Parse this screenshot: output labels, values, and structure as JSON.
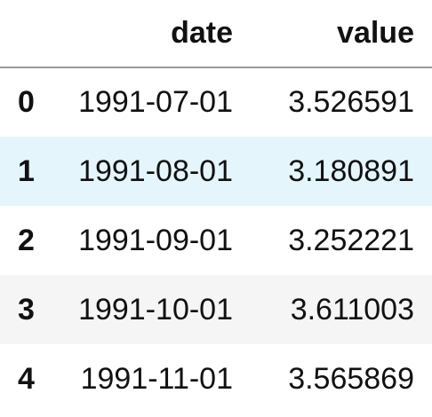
{
  "table": {
    "columns": {
      "index": "",
      "date": "date",
      "value": "value"
    },
    "rows": [
      {
        "index": "0",
        "date": "1991-07-01",
        "value": "3.526591",
        "state": "normal"
      },
      {
        "index": "1",
        "date": "1991-08-01",
        "value": "3.180891",
        "state": "hover"
      },
      {
        "index": "2",
        "date": "1991-09-01",
        "value": "3.252221",
        "state": "normal"
      },
      {
        "index": "3",
        "date": "1991-10-01",
        "value": "3.611003",
        "state": "stripe"
      },
      {
        "index": "4",
        "date": "1991-11-01",
        "value": "3.565869",
        "state": "normal"
      }
    ]
  },
  "colors": {
    "hover_row_bg": "#e4f5fc",
    "stripe_row_bg": "#f5f5f5",
    "header_rule": "#9a9a9a",
    "text": "#111111"
  }
}
